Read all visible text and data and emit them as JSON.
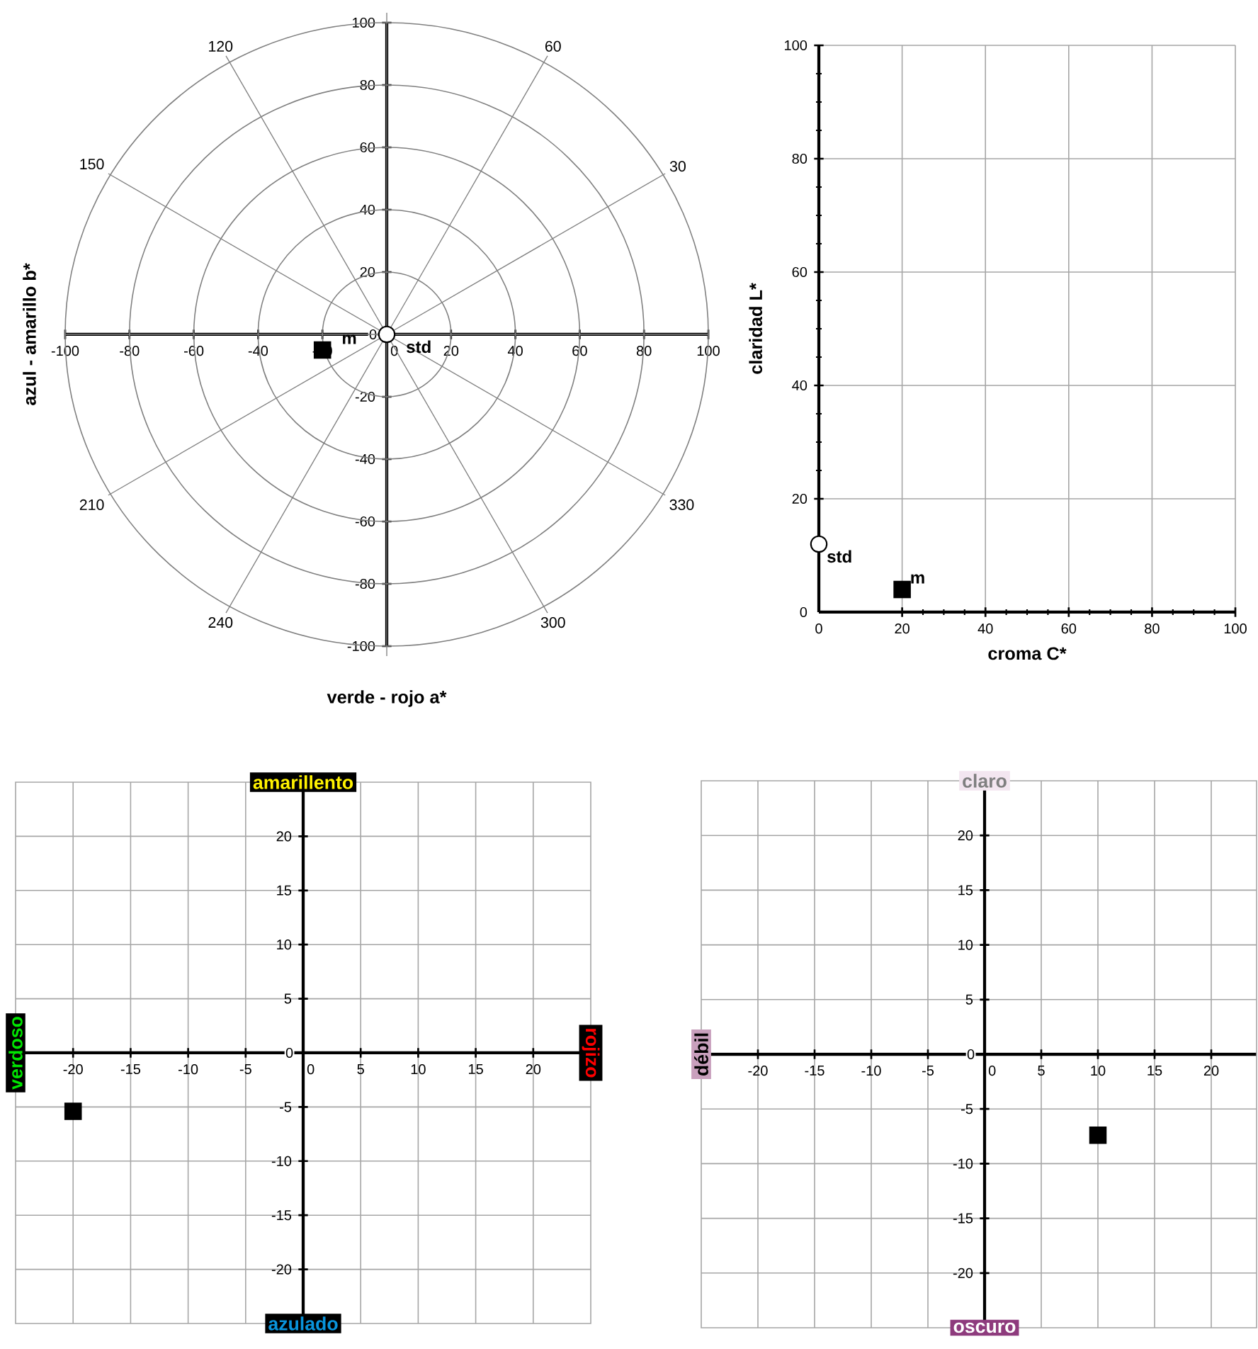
{
  "chart_data": [
    {
      "type": "scatter",
      "xlabel": "verde - rojo a*",
      "ylabel": "azul - amarillo b*",
      "xlim": [
        -100,
        100
      ],
      "ylim": [
        -100,
        100
      ],
      "xticks": [
        -100,
        -80,
        -60,
        -40,
        -20,
        0,
        20,
        40,
        60,
        80,
        100
      ],
      "yticks": [
        -100,
        -80,
        -60,
        -40,
        -20,
        0,
        20,
        40,
        60,
        80,
        100
      ],
      "grid": true,
      "series": [
        {
          "name": "std",
          "color": "#ffffff",
          "marker": "circle",
          "x": [
            0
          ],
          "values": [
            0
          ]
        },
        {
          "name": "m",
          "color": "#000000",
          "marker": "square",
          "x": [
            -20
          ],
          "values": [
            -5
          ]
        }
      ],
      "annotations": [
        "30",
        "60",
        "120",
        "150",
        "210",
        "240",
        "300",
        "330"
      ]
    },
    {
      "type": "scatter",
      "xlabel": "croma C*",
      "ylabel": "claridad L*",
      "xlim": [
        0,
        100
      ],
      "ylim": [
        0,
        100
      ],
      "xticks": [
        0,
        20,
        40,
        60,
        80,
        100
      ],
      "yticks": [
        0,
        20,
        40,
        60,
        80,
        100
      ],
      "grid": true,
      "series": [
        {
          "name": "std",
          "color": "#ffffff",
          "marker": "circle",
          "x": [
            0
          ],
          "values": [
            12
          ]
        },
        {
          "name": "m",
          "color": "#000000",
          "marker": "square",
          "x": [
            20
          ],
          "values": [
            4
          ]
        }
      ]
    },
    {
      "type": "scatter",
      "xlim": [
        -25,
        25
      ],
      "ylim": [
        -25,
        25
      ],
      "xticks": [
        -20,
        -15,
        -10,
        -5,
        0,
        5,
        10,
        15,
        20
      ],
      "yticks": [
        -20,
        -15,
        -10,
        -5,
        0,
        5,
        10,
        15,
        20
      ],
      "grid": true,
      "series": [
        {
          "color": "#000000",
          "marker": "square",
          "x": [
            -20
          ],
          "values": [
            -5.4
          ]
        }
      ],
      "annotations": [
        "amarillento",
        "azulado",
        "verdoso",
        "rojizo"
      ]
    },
    {
      "type": "scatter",
      "xlim": [
        -25,
        24
      ],
      "ylim": [
        -25,
        25
      ],
      "xticks": [
        -20,
        -15,
        -10,
        -5,
        0,
        5,
        10,
        15,
        20
      ],
      "yticks": [
        -20,
        -15,
        -10,
        -5,
        0,
        5,
        10,
        15,
        20
      ],
      "grid": true,
      "series": [
        {
          "color": "#000000",
          "marker": "square",
          "x": [
            10
          ],
          "values": [
            -7.4
          ]
        }
      ],
      "annotations": [
        "claro",
        "oscuro",
        "débil"
      ]
    }
  ]
}
